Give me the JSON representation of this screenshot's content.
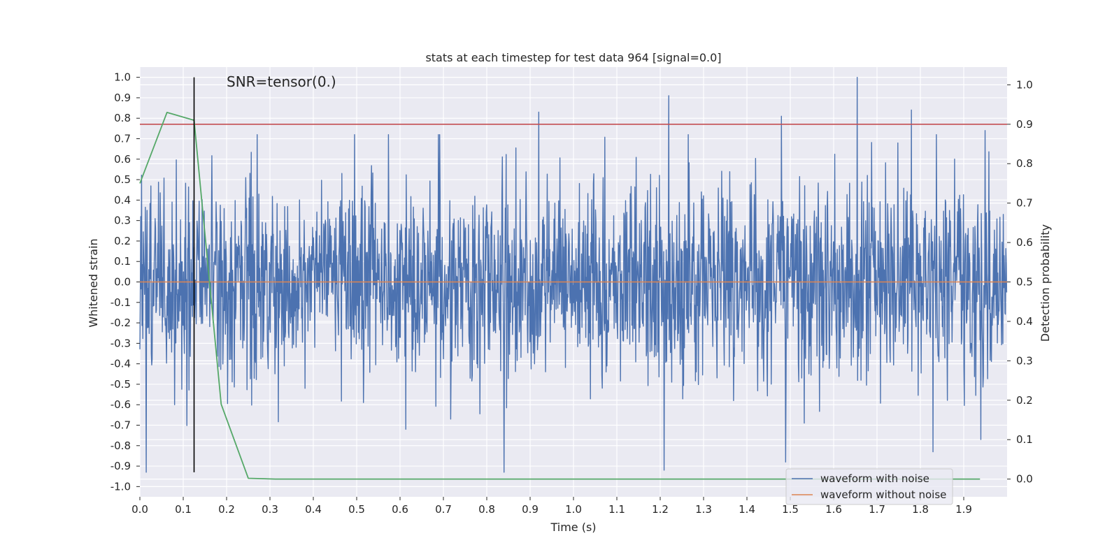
{
  "chart_data": {
    "type": "line",
    "title": "stats at each timestep for test data 964 [signal=0.0]",
    "xlabel": "Time (s)",
    "ylabel": "Whitened strain",
    "y2label": "Detection probability",
    "annotation": "SNR=tensor(0.)",
    "xlim": [
      0.0,
      2.0
    ],
    "ylim": [
      -1.05,
      1.05
    ],
    "y2lim": [
      -0.045,
      1.045
    ],
    "x_ticks": [
      "0.0",
      "0.1",
      "0.2",
      "0.3",
      "0.4",
      "0.5",
      "0.6",
      "0.7",
      "0.8",
      "0.9",
      "1.0",
      "1.1",
      "1.2",
      "1.3",
      "1.4",
      "1.5",
      "1.6",
      "1.7",
      "1.8",
      "1.9"
    ],
    "y_ticks": [
      "1.0",
      "0.9",
      "0.8",
      "0.7",
      "0.6",
      "0.5",
      "0.4",
      "0.3",
      "0.2",
      "0.1",
      "0.0",
      "-0.1",
      "-0.2",
      "-0.3",
      "-0.4",
      "-0.5",
      "-0.6",
      "-0.7",
      "-0.8",
      "-0.9",
      "-1.0"
    ],
    "y2_ticks": [
      "1.0",
      "0.9",
      "0.8",
      "0.7",
      "0.6",
      "0.5",
      "0.4",
      "0.3",
      "0.2",
      "0.1",
      "0.0"
    ],
    "grid": true,
    "legend_position": "lower-right",
    "series": [
      {
        "name": "waveform with noise",
        "axis": "left",
        "color": "#4c72b0",
        "n_points": 2048,
        "std": 0.25,
        "seed": 964,
        "extremes": [
          {
            "x": 0.015,
            "y": -0.93
          },
          {
            "x": 0.08,
            "y": -0.6
          },
          {
            "x": 0.92,
            "y": 0.83
          },
          {
            "x": 0.84,
            "y": -0.93
          },
          {
            "x": 1.22,
            "y": 0.91
          },
          {
            "x": 1.21,
            "y": -0.92
          },
          {
            "x": 1.48,
            "y": 0.81
          },
          {
            "x": 1.49,
            "y": -0.88
          },
          {
            "x": 1.655,
            "y": 1.0
          },
          {
            "x": 1.78,
            "y": 0.84
          },
          {
            "x": 1.83,
            "y": -0.83
          },
          {
            "x": 1.95,
            "y": 0.74
          },
          {
            "x": 1.94,
            "y": -0.77
          }
        ]
      },
      {
        "name": "waveform without noise",
        "axis": "left",
        "color": "#dd8452",
        "x": [
          0.0,
          2.0
        ],
        "y": [
          0.0,
          0.0
        ]
      },
      {
        "name": "",
        "axis": "right",
        "color": "#55a868",
        "x": [
          0.0,
          0.0625,
          0.125,
          0.1875,
          0.25,
          0.3125,
          0.5,
          1.0,
          1.5,
          1.9375
        ],
        "y": [
          0.75,
          0.93,
          0.91,
          0.19,
          0.002,
          0.0,
          0.0,
          0.0,
          0.0,
          0.0
        ]
      }
    ],
    "threshold": {
      "axis": "right",
      "y": 0.9,
      "color": "#c44e52"
    },
    "vline": {
      "x": 0.125,
      "y_from": -0.93,
      "y_to": 1.0,
      "color": "#000000"
    }
  }
}
